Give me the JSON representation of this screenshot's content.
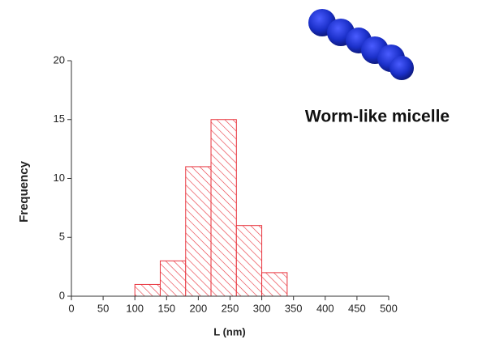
{
  "chart_data": {
    "type": "histogram",
    "bins": [
      100,
      140,
      180,
      220,
      260,
      300,
      340
    ],
    "values": [
      1,
      3,
      11,
      15,
      6,
      2
    ],
    "color": "#e8333c",
    "xlabel": "L (nm)",
    "ylabel": "Frequency",
    "annotation": "Worm-like micelle",
    "xlim": [
      0,
      500
    ],
    "xticks": [
      0,
      50,
      100,
      150,
      200,
      250,
      300,
      350,
      400,
      450,
      500
    ],
    "ylim": [
      0,
      20
    ],
    "yticks": [
      0,
      5,
      10,
      15,
      20
    ]
  }
}
